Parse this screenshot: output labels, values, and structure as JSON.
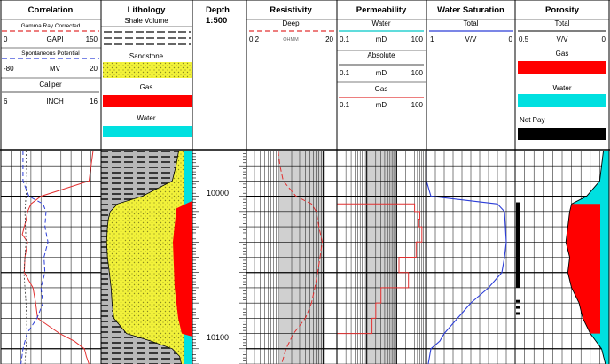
{
  "header": {
    "correlation": {
      "title": "Correlation",
      "gr": {
        "label": "Gamma Ray Corrected",
        "min": "0",
        "unit": "GAPI",
        "max": "150"
      },
      "sp": {
        "label": "Spontaneous Potential",
        "min": "-80",
        "unit": "MV",
        "max": "20"
      },
      "cal": {
        "label": "Caliper",
        "min": "6",
        "unit": "INCH",
        "max": "16"
      }
    },
    "lithology": {
      "title": "Lithology",
      "subtitle": "Shale Volume",
      "legend": [
        "Sandstone",
        "Gas",
        "Water"
      ]
    },
    "depth": {
      "title": "Depth",
      "scale": "1:500"
    },
    "resistivity": {
      "title": "Resistivity",
      "curve": "Deep",
      "min": "0.2",
      "unit": "OHMM",
      "max": "20"
    },
    "permeability": {
      "title": "Permeability",
      "curves": [
        {
          "name": "Water",
          "min": "0.1",
          "unit": "mD",
          "max": "100"
        },
        {
          "name": "Absolute",
          "min": "0.1",
          "unit": "mD",
          "max": "100"
        },
        {
          "name": "Gas",
          "min": "0.1",
          "unit": "mD",
          "max": "100"
        }
      ]
    },
    "water_saturation": {
      "title": "Water Saturation",
      "curve": "Total",
      "min": "1",
      "unit": "V/V",
      "max": "0"
    },
    "porosity": {
      "title": "Porosity",
      "curve": "Total",
      "min": "0.5",
      "unit": "V/V",
      "max": "0",
      "legend": [
        "Gas",
        "Water",
        "Net Pay"
      ]
    }
  },
  "depth_labels": [
    "10000",
    "10100"
  ],
  "colors": {
    "gamma_ray": "#e23030",
    "sp": "#2c3ed8",
    "caliper": "#333333",
    "sandstone": "#f2f23a",
    "gas": "#ff0000",
    "water": "#00e0e0",
    "net_pay": "#000000",
    "resistivity": "#e23030",
    "permeability": "#e23030",
    "water_saturation": "#2c3ed8",
    "porosity_line": "#000000"
  },
  "chart_data": {
    "type": "line",
    "y_axis": "depth",
    "ylim": [
      9970,
      10110
    ],
    "ylabel": "Depth",
    "tracks": [
      {
        "name": "Gamma Ray Corrected",
        "unit": "GAPI",
        "xlim": [
          0,
          150
        ],
        "depth": [
          9970,
          9980,
          9990,
          10000,
          10005,
          10010,
          10015,
          10020,
          10025,
          10030,
          10040,
          10050,
          10060,
          10070,
          10080,
          10090,
          10095,
          10100,
          10105,
          10110
        ],
        "values": [
          138,
          135,
          132,
          60,
          45,
          40,
          38,
          35,
          32,
          40,
          36,
          35,
          48,
          52,
          55,
          88,
          110,
          125,
          128,
          132
        ]
      },
      {
        "name": "Spontaneous Potential",
        "unit": "MV",
        "xlim": [
          -80,
          20
        ],
        "depth": [
          9970,
          9990,
          10000,
          10005,
          10010,
          10020,
          10030,
          10040,
          10050,
          10060,
          10070,
          10080,
          10090,
          10100,
          10110
        ],
        "values": [
          -58,
          -58,
          -52,
          -38,
          -35,
          -36,
          -33,
          -37,
          -36,
          -40,
          -38,
          -44,
          -54,
          -58,
          -60
        ]
      },
      {
        "name": "Caliper",
        "unit": "INCH",
        "xlim": [
          6,
          16
        ],
        "depth": [
          9970,
          9990,
          10010,
          10030,
          10050,
          10070,
          10090,
          10110
        ],
        "values": [
          8.5,
          8.6,
          8.4,
          8.5,
          8.3,
          8.5,
          8.6,
          8.4
        ]
      },
      {
        "name": "Shale Volume",
        "unit": "V/V",
        "xlim": [
          0,
          1
        ],
        "depth": [
          9970,
          9980,
          9990,
          10000,
          10005,
          10010,
          10015,
          10020,
          10030,
          10040,
          10050,
          10060,
          10070,
          10080,
          10090,
          10095,
          10100,
          10105,
          10110
        ],
        "values": [
          0.85,
          0.82,
          0.78,
          0.45,
          0.18,
          0.1,
          0.08,
          0.07,
          0.06,
          0.07,
          0.09,
          0.11,
          0.12,
          0.14,
          0.28,
          0.55,
          0.78,
          0.86,
          0.88
        ]
      },
      {
        "name": "Deep Resistivity",
        "unit": "OHMM",
        "xlim": [
          0.2,
          20
        ],
        "scale": "log",
        "depth": [
          9970,
          9980,
          9990,
          10000,
          10005,
          10010,
          10020,
          10030,
          10040,
          10050,
          10060,
          10070,
          10080,
          10090,
          10100,
          10110
        ],
        "values": [
          1.0,
          1.1,
          1.3,
          2.5,
          5.5,
          7.0,
          8.0,
          9.5,
          8.5,
          7.5,
          6.5,
          5.5,
          4.0,
          2.2,
          1.5,
          1.2
        ]
      },
      {
        "name": "Absolute Permeability",
        "unit": "mD",
        "xlim": [
          0.1,
          100
        ],
        "scale": "log",
        "depth": [
          10005,
          10010,
          10015,
          10020,
          10030,
          10040,
          10050,
          10060,
          10070,
          10080,
          10090
        ],
        "values": [
          40,
          60,
          55,
          70,
          45,
          12,
          25,
          3,
          2,
          1.5,
          0.8
        ]
      },
      {
        "name": "Water Saturation Total",
        "unit": "V/V",
        "xlim": [
          1,
          0
        ],
        "depth": [
          9970,
          9990,
          10000,
          10005,
          10010,
          10020,
          10030,
          10040,
          10050,
          10060,
          10070,
          10080,
          10090,
          10095,
          10100,
          10110
        ],
        "values": [
          1.0,
          1.0,
          0.95,
          0.2,
          0.12,
          0.11,
          0.1,
          0.12,
          0.15,
          0.3,
          0.5,
          0.65,
          0.8,
          0.85,
          0.95,
          0.98
        ]
      },
      {
        "name": "Porosity Total",
        "unit": "V/V",
        "xlim": [
          0.5,
          0
        ],
        "depth": [
          9970,
          9980,
          9990,
          10000,
          10005,
          10010,
          10020,
          10030,
          10040,
          10050,
          10060,
          10070,
          10080,
          10090,
          10100,
          10110
        ],
        "values": [
          0.03,
          0.04,
          0.05,
          0.12,
          0.2,
          0.21,
          0.22,
          0.23,
          0.21,
          0.22,
          0.2,
          0.16,
          0.14,
          0.1,
          0.04,
          0.02
        ]
      }
    ]
  }
}
